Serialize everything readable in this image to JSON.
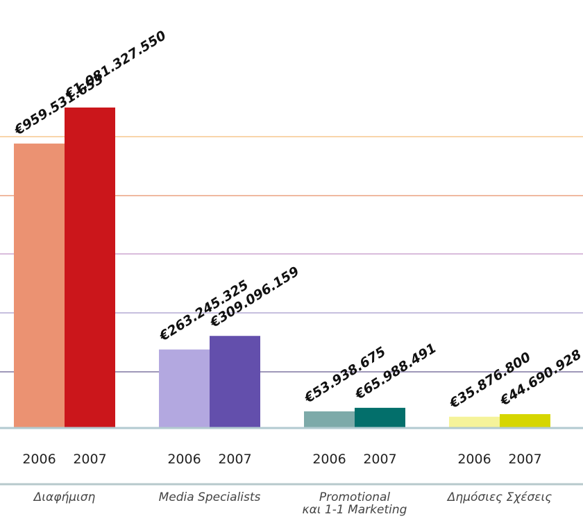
{
  "colors": {
    "gridlines": [
      "#F8D5AA",
      "#F0B9A0",
      "#D9BCDB",
      "#C6BFDE",
      "#9E97B8",
      "#A8C9CF"
    ],
    "axis_line": "#B2CAD0",
    "bottom_line": "#B7C9CC"
  },
  "chart_data": {
    "type": "bar",
    "title": "",
    "xlabel": "",
    "ylabel": "",
    "ylim": [
      0,
      1250000000
    ],
    "grid": true,
    "groups": [
      {
        "category": "Διαφήμιση",
        "bars": [
          {
            "year": "2006",
            "value": 959531653,
            "label": "€959.531.653",
            "color": "#EB9272"
          },
          {
            "year": "2007",
            "value": 1081327550,
            "label": "€1.081.327.550",
            "color": "#CB161B"
          }
        ]
      },
      {
        "category": "Media Specialists",
        "bars": [
          {
            "year": "2006",
            "value": 263245325,
            "label": "€263.245.325",
            "color": "#B3A8E0"
          },
          {
            "year": "2007",
            "value": 309096159,
            "label": "€309.096.159",
            "color": "#634FAC"
          }
        ]
      },
      {
        "category": "Promotional και 1-1 Marketing",
        "category_lines": [
          "Promotional",
          "και 1-1 Marketing"
        ],
        "bars": [
          {
            "year": "2006",
            "value": 53938675,
            "label": "€53.938.675",
            "color": "#7DAAA9"
          },
          {
            "year": "2007",
            "value": 65988491,
            "label": "€65.988.491",
            "color": "#036F6B"
          }
        ]
      },
      {
        "category": "Δημόσιες Σχέσεις",
        "bars": [
          {
            "year": "2006",
            "value": 35876800,
            "label": "€35.876.800",
            "color": "#F5F39A"
          },
          {
            "year": "2007",
            "value": 44690928,
            "label": "€44.690.928",
            "color": "#D6D600"
          }
        ]
      }
    ]
  }
}
